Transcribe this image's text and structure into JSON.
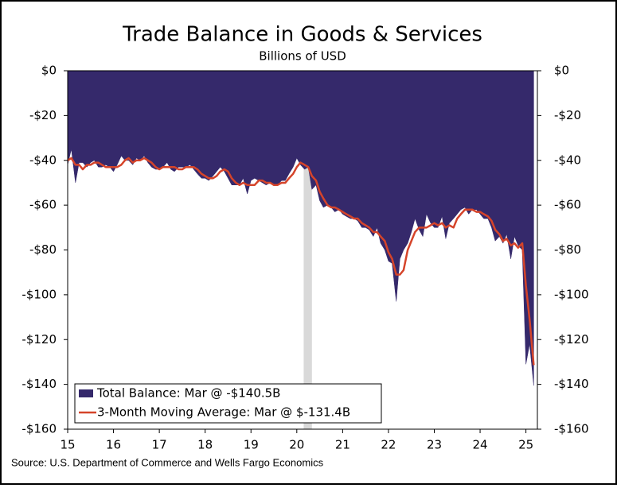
{
  "chart_data": {
    "type": "area-line",
    "title": "Trade Balance in Goods & Services",
    "subtitle": "Billions of USD",
    "source": "Source: U.S. Department of Commerce and Wells Fargo Economics",
    "xlim": [
      15,
      25.25
    ],
    "xticks": [
      15,
      16,
      17,
      18,
      19,
      20,
      21,
      22,
      23,
      24,
      25
    ],
    "ylim": [
      -160,
      0
    ],
    "yticks": [
      {
        "value": 0,
        "label": "$0"
      },
      {
        "value": -20,
        "label": "-$20"
      },
      {
        "value": -40,
        "label": "-$40"
      },
      {
        "value": -60,
        "label": "-$60"
      },
      {
        "value": -80,
        "label": "-$80"
      },
      {
        "value": -100,
        "label": "-$100"
      },
      {
        "value": -120,
        "label": "-$120"
      },
      {
        "value": -140,
        "label": "-$140"
      },
      {
        "value": -160,
        "label": "-$160"
      }
    ],
    "y2lim": [
      -160,
      0
    ],
    "y2ticks": [
      {
        "value": 0,
        "label": "$0"
      },
      {
        "value": -20,
        "label": "-$20"
      },
      {
        "value": -40,
        "label": "-$40"
      },
      {
        "value": -60,
        "label": "-$60"
      },
      {
        "value": -80,
        "label": "-$80"
      },
      {
        "value": -100,
        "label": "-$100"
      },
      {
        "value": -120,
        "label": "-$120"
      },
      {
        "value": -140,
        "label": "-$140"
      },
      {
        "value": -160,
        "label": "-$160"
      }
    ],
    "shade": {
      "x": [
        20.15,
        20.33
      ],
      "color": "#d9d9d9"
    },
    "x": [
      15.0,
      15.08,
      15.17,
      15.25,
      15.33,
      15.42,
      15.5,
      15.58,
      15.67,
      15.75,
      15.83,
      15.92,
      16.0,
      16.08,
      16.17,
      16.25,
      16.33,
      16.42,
      16.5,
      16.58,
      16.67,
      16.75,
      16.83,
      16.92,
      17.0,
      17.08,
      17.17,
      17.25,
      17.33,
      17.42,
      17.5,
      17.58,
      17.67,
      17.75,
      17.83,
      17.92,
      18.0,
      18.08,
      18.17,
      18.25,
      18.33,
      18.42,
      18.5,
      18.58,
      18.67,
      18.75,
      18.83,
      18.92,
      19.0,
      19.08,
      19.17,
      19.25,
      19.33,
      19.42,
      19.5,
      19.58,
      19.67,
      19.75,
      19.83,
      19.92,
      20.0,
      20.08,
      20.17,
      20.25,
      20.33,
      20.42,
      20.5,
      20.58,
      20.67,
      20.75,
      20.83,
      20.92,
      21.0,
      21.08,
      21.17,
      21.25,
      21.33,
      21.42,
      21.5,
      21.58,
      21.67,
      21.75,
      21.83,
      21.92,
      22.0,
      22.08,
      22.17,
      22.25,
      22.33,
      22.42,
      22.5,
      22.58,
      22.67,
      22.75,
      22.83,
      22.92,
      23.0,
      23.08,
      23.17,
      23.25,
      23.33,
      23.42,
      23.5,
      23.58,
      23.67,
      23.75,
      23.83,
      23.92,
      24.0,
      24.08,
      24.17,
      24.25,
      24.33,
      24.42,
      24.5,
      24.58,
      24.67,
      24.75,
      24.83,
      24.92,
      25.0,
      25.08,
      25.17
    ],
    "series": [
      {
        "name": "Total Balance: Mar @ -$140.5B",
        "color": "#35296b",
        "kind": "area",
        "values": [
          -42,
          -35,
          -50,
          -41,
          -41,
          -43,
          -41,
          -40,
          -43,
          -43,
          -42,
          -43,
          -45,
          -42,
          -38,
          -40,
          -40,
          -42,
          -39,
          -40,
          -38,
          -41,
          -43,
          -44,
          -44,
          -43,
          -41,
          -44,
          -45,
          -43,
          -43,
          -43,
          -42,
          -44,
          -46,
          -48,
          -48,
          -49,
          -47,
          -45,
          -43,
          -45,
          -48,
          -51,
          -51,
          -51,
          -48,
          -55,
          -49,
          -48,
          -49,
          -50,
          -51,
          -50,
          -51,
          -51,
          -49,
          -49,
          -46,
          -43,
          -39,
          -42,
          -44,
          -43,
          -53,
          -51,
          -58,
          -61,
          -60,
          -61,
          -63,
          -62,
          -64,
          -65,
          -66,
          -66,
          -67,
          -70,
          -70,
          -71,
          -74,
          -70,
          -77,
          -80,
          -85,
          -86,
          -103,
          -84,
          -80,
          -77,
          -72,
          -66,
          -71,
          -74,
          -64,
          -68,
          -70,
          -70,
          -65,
          -75,
          -68,
          -66,
          -64,
          -62,
          -61,
          -64,
          -62,
          -62,
          -64,
          -66,
          -66,
          -70,
          -76,
          -74,
          -77,
          -73,
          -84,
          -74,
          -78,
          -80,
          -131,
          -122,
          -140.5
        ]
      },
      {
        "name": "3-Month Moving Average: Mar @ $-131.4B",
        "color": "#d5442a",
        "kind": "line",
        "values": [
          -40,
          -39,
          -42,
          -42,
          -44,
          -42,
          -42,
          -41,
          -41,
          -42,
          -43,
          -43,
          -43,
          -43,
          -42,
          -40,
          -39,
          -41,
          -40,
          -40,
          -39,
          -40,
          -41,
          -43,
          -44,
          -43,
          -43,
          -43,
          -43,
          -44,
          -44,
          -43,
          -43,
          -43,
          -44,
          -46,
          -47,
          -48,
          -48,
          -47,
          -45,
          -44,
          -45,
          -48,
          -50,
          -51,
          -50,
          -51,
          -51,
          -51,
          -49,
          -49,
          -50,
          -50,
          -51,
          -51,
          -50,
          -50,
          -48,
          -46,
          -43,
          -41,
          -42,
          -43,
          -47,
          -49,
          -54,
          -57,
          -60,
          -61,
          -61,
          -62,
          -63,
          -64,
          -65,
          -66,
          -66,
          -68,
          -69,
          -70,
          -72,
          -72,
          -74,
          -76,
          -81,
          -84,
          -91,
          -91,
          -89,
          -80,
          -76,
          -72,
          -70,
          -70,
          -70,
          -69,
          -68,
          -69,
          -68,
          -70,
          -69,
          -70,
          -66,
          -64,
          -62,
          -62,
          -62,
          -63,
          -63,
          -64,
          -65,
          -67,
          -71,
          -73,
          -76,
          -75,
          -78,
          -77,
          -79,
          -77,
          -96,
          -111,
          -131.4
        ]
      }
    ]
  }
}
